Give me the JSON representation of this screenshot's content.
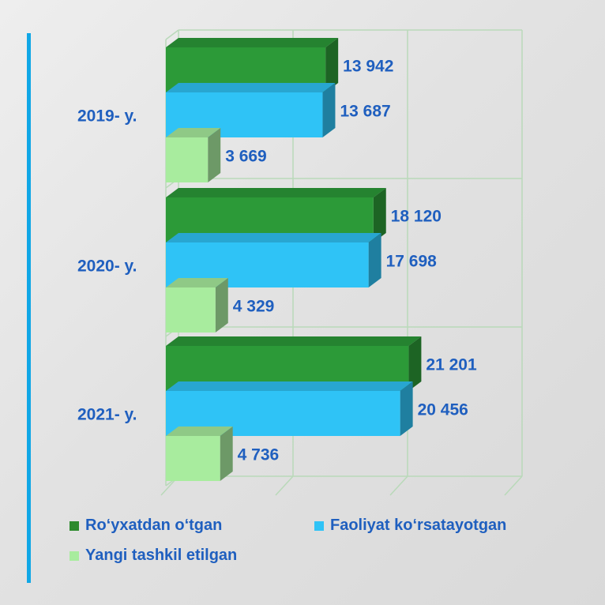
{
  "chart_data": {
    "type": "bar",
    "orientation": "horizontal",
    "style": "3d",
    "categories": [
      "2019- y.",
      "2020- y.",
      "2021- y."
    ],
    "series": [
      {
        "name": "Ro‘yxatdan o‘tgan",
        "values": [
          13942,
          18120,
          21201
        ],
        "color": "#2c9a38",
        "value_labels": [
          "13 942",
          "18 120",
          "21 201"
        ]
      },
      {
        "name": "Faoliyat ko‘rsatayotgan",
        "values": [
          13687,
          17698,
          20456
        ],
        "color": "#2fc3f6",
        "value_labels": [
          "13 687",
          "17 698",
          "20 456"
        ]
      },
      {
        "name": "Yangi tashkil etilgan",
        "values": [
          3669,
          4329,
          4736
        ],
        "color": "#a8ec9e",
        "value_labels": [
          "3 669",
          "4 329",
          "4 736"
        ]
      }
    ],
    "xlim": [
      0,
      30000
    ],
    "grid": true,
    "legend": "bottom"
  }
}
